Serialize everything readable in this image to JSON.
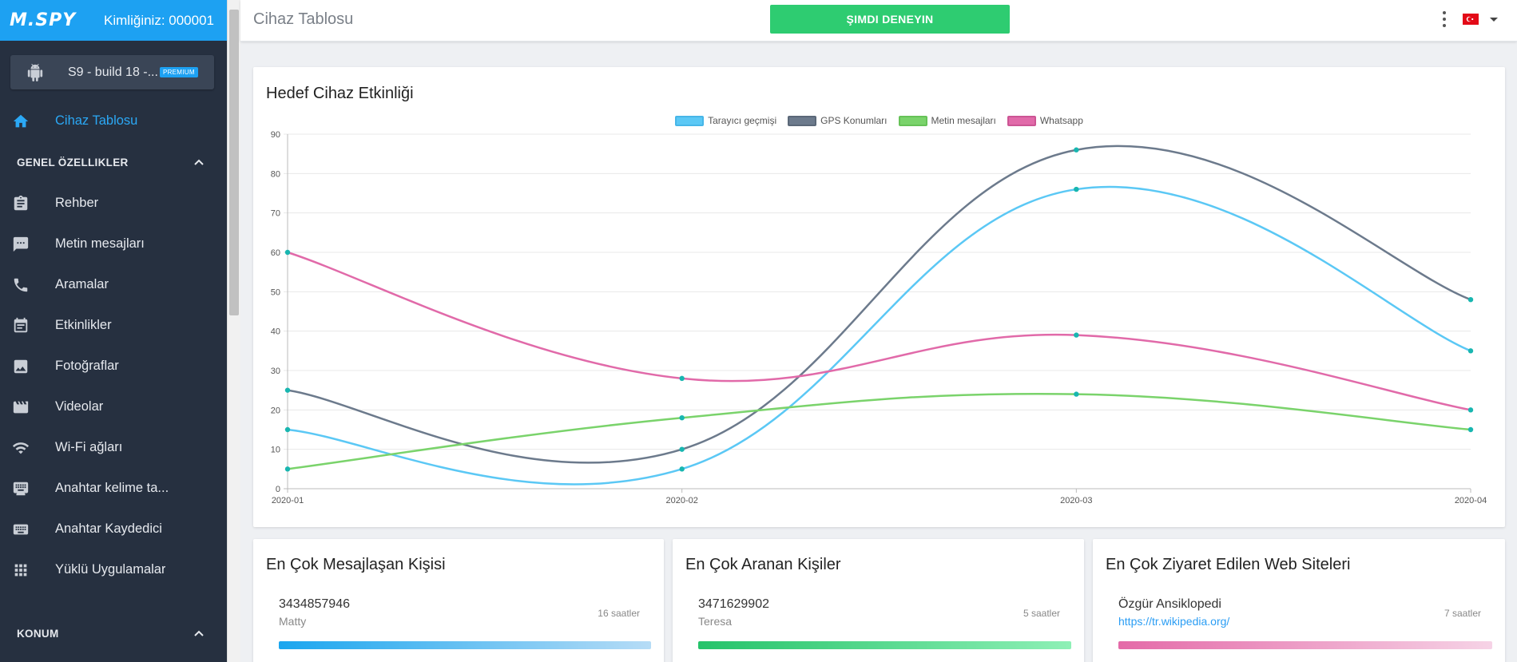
{
  "sidebar": {
    "logo": "M.SPY",
    "kimlik": "Kimliğiniz: 000001",
    "device_name": "S9 - build 18 -...",
    "premium": "PREMIUM",
    "dashboard_label": "Cihaz Tablosu",
    "section_general": "GENEL ÖZELLIKLER",
    "items": [
      {
        "label": "Rehber",
        "icon": "contacts-icon"
      },
      {
        "label": "Metin mesajları",
        "icon": "message-icon"
      },
      {
        "label": "Aramalar",
        "icon": "phone-icon"
      },
      {
        "label": "Etkinlikler",
        "icon": "calendar-icon"
      },
      {
        "label": "Fotoğraflar",
        "icon": "image-icon"
      },
      {
        "label": "Videolar",
        "icon": "video-icon"
      },
      {
        "label": "Wi-Fi ağları",
        "icon": "wifi-icon"
      },
      {
        "label": "Anahtar kelime ta...",
        "icon": "keyboard-icon"
      },
      {
        "label": "Anahtar Kaydedici",
        "icon": "keyboard-icon"
      },
      {
        "label": "Yüklü Uygulamalar",
        "icon": "apps-icon"
      }
    ],
    "section_location": "KONUM"
  },
  "header": {
    "title": "Cihaz Tablosu",
    "cta": "ŞIMDI DENEYIN"
  },
  "colors": {
    "accent": "#1da1f2",
    "cta": "#2ecc71",
    "sidebar_bg": "#263040"
  },
  "chart_card": {
    "title": "Hedef Cihaz Etkinliği"
  },
  "chart_data": {
    "type": "line",
    "categories": [
      "2020-01",
      "2020-02",
      "2020-03",
      "2020-04"
    ],
    "ylim": [
      0,
      90
    ],
    "yticks": [
      0,
      10,
      20,
      30,
      40,
      50,
      60,
      70,
      80,
      90
    ],
    "grid": true,
    "legend": "top-center",
    "series": [
      {
        "name": "Tarayıcı geçmişi",
        "color": "#5bc8f5",
        "values": [
          15,
          5,
          76,
          35
        ]
      },
      {
        "name": "GPS Konumları",
        "color": "#6c7a8c",
        "values": [
          25,
          10,
          86,
          48
        ]
      },
      {
        "name": "Metin mesajları",
        "color": "#7ad36b",
        "values": [
          5,
          18,
          24,
          15
        ]
      },
      {
        "name": "Whatsapp",
        "color": "#e16aa9",
        "values": [
          60,
          28,
          39,
          20
        ]
      }
    ]
  },
  "top_messaged": {
    "title": "En Çok Mesajlaşan Kişisi",
    "number": "3434857946",
    "name": "Matty",
    "time": "16 saatler",
    "level": 1.0
  },
  "top_called": {
    "title": "En Çok Aranan Kişiler",
    "number": "3471629902",
    "name": "Teresa",
    "time": "5 saatler",
    "level": 1.0
  },
  "top_sites": {
    "title": "En Çok Ziyaret Edilen Web Siteleri",
    "site": "Özgür Ansiklopedi",
    "url": "https://tr.wikipedia.org/",
    "time": "7 saatler",
    "level": 1.0
  }
}
